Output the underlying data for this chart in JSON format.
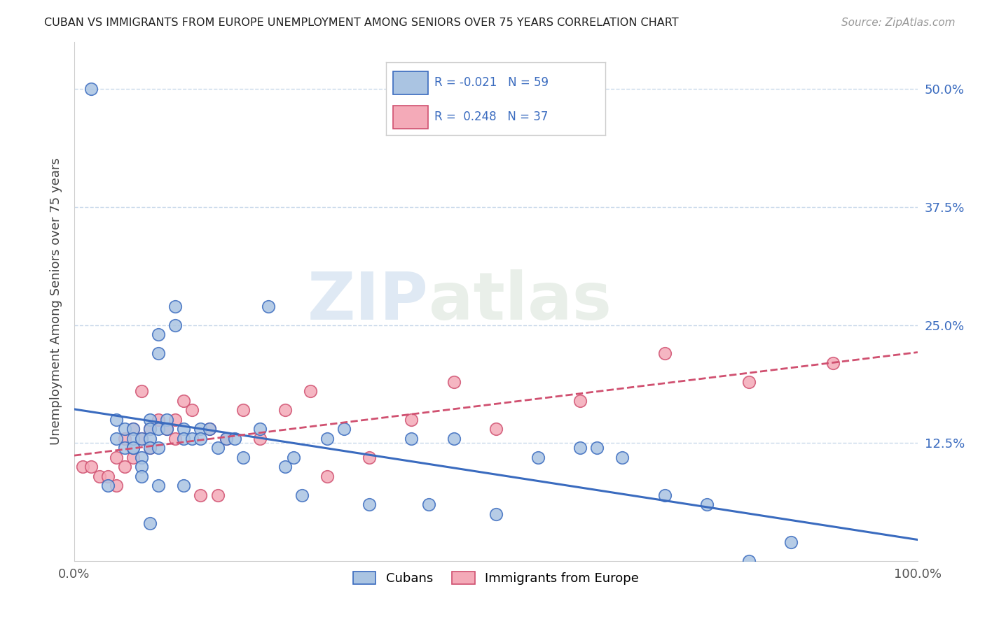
{
  "title": "CUBAN VS IMMIGRANTS FROM EUROPE UNEMPLOYMENT AMONG SENIORS OVER 75 YEARS CORRELATION CHART",
  "source": "Source: ZipAtlas.com",
  "ylabel": "Unemployment Among Seniors over 75 years",
  "legend_labels": [
    "Cubans",
    "Immigrants from Europe"
  ],
  "r_cuban": -0.021,
  "n_cuban": 59,
  "r_europe": 0.248,
  "n_europe": 37,
  "xlim": [
    0.0,
    1.0
  ],
  "ylim": [
    0.0,
    0.55
  ],
  "xticks": [
    0.0,
    1.0
  ],
  "xtick_labels": [
    "0.0%",
    "100.0%"
  ],
  "ytick_vals": [
    0.125,
    0.25,
    0.375,
    0.5
  ],
  "ytick_labels": [
    "12.5%",
    "25.0%",
    "37.5%",
    "50.0%"
  ],
  "cuban_color": "#aac4e2",
  "europe_color": "#f4aab8",
  "cuban_line_color": "#3a6bbf",
  "europe_line_color": "#d05070",
  "watermark_zip": "ZIP",
  "watermark_atlas": "atlas",
  "background_color": "#ffffff",
  "grid_color": "#c8d8ea",
  "cuban_x": [
    0.02,
    0.04,
    0.05,
    0.05,
    0.06,
    0.06,
    0.07,
    0.07,
    0.07,
    0.07,
    0.08,
    0.08,
    0.08,
    0.08,
    0.09,
    0.09,
    0.09,
    0.09,
    0.1,
    0.1,
    0.1,
    0.1,
    0.11,
    0.11,
    0.12,
    0.12,
    0.13,
    0.13,
    0.14,
    0.15,
    0.15,
    0.16,
    0.17,
    0.18,
    0.19,
    0.2,
    0.22,
    0.23,
    0.25,
    0.26,
    0.27,
    0.3,
    0.32,
    0.35,
    0.4,
    0.42,
    0.45,
    0.5,
    0.55,
    0.6,
    0.62,
    0.65,
    0.7,
    0.75,
    0.8,
    0.85,
    0.1,
    0.09,
    0.13
  ],
  "cuban_y": [
    0.5,
    0.08,
    0.15,
    0.13,
    0.14,
    0.12,
    0.14,
    0.12,
    0.13,
    0.12,
    0.13,
    0.11,
    0.1,
    0.09,
    0.15,
    0.14,
    0.13,
    0.12,
    0.22,
    0.24,
    0.14,
    0.12,
    0.15,
    0.14,
    0.27,
    0.25,
    0.14,
    0.13,
    0.13,
    0.14,
    0.13,
    0.14,
    0.12,
    0.13,
    0.13,
    0.11,
    0.14,
    0.27,
    0.1,
    0.11,
    0.07,
    0.13,
    0.14,
    0.06,
    0.13,
    0.06,
    0.13,
    0.05,
    0.11,
    0.12,
    0.12,
    0.11,
    0.07,
    0.06,
    0.0,
    0.02,
    0.08,
    0.04,
    0.08
  ],
  "europe_x": [
    0.01,
    0.02,
    0.03,
    0.04,
    0.05,
    0.05,
    0.06,
    0.06,
    0.07,
    0.07,
    0.08,
    0.08,
    0.09,
    0.09,
    0.1,
    0.11,
    0.12,
    0.12,
    0.13,
    0.14,
    0.15,
    0.16,
    0.17,
    0.18,
    0.2,
    0.22,
    0.25,
    0.28,
    0.3,
    0.35,
    0.4,
    0.45,
    0.5,
    0.6,
    0.7,
    0.8,
    0.9
  ],
  "europe_y": [
    0.1,
    0.1,
    0.09,
    0.09,
    0.11,
    0.08,
    0.13,
    0.1,
    0.14,
    0.11,
    0.18,
    0.13,
    0.14,
    0.12,
    0.15,
    0.14,
    0.15,
    0.13,
    0.17,
    0.16,
    0.07,
    0.14,
    0.07,
    0.13,
    0.16,
    0.13,
    0.16,
    0.18,
    0.09,
    0.11,
    0.15,
    0.19,
    0.14,
    0.17,
    0.22,
    0.19,
    0.21
  ]
}
